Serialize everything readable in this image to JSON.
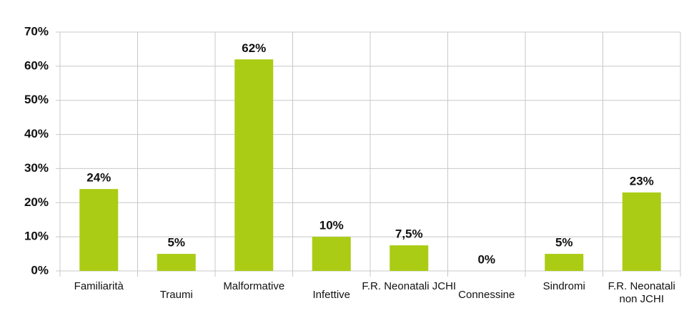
{
  "chart_data": {
    "type": "bar",
    "categories": [
      "Familiarità",
      "Traumi",
      "Malformative",
      "Infettive",
      "F.R. Neonatali JCHI",
      "Connessine",
      "Sindromi",
      "F.R. Neonatali\nnon JCHI"
    ],
    "values": [
      24,
      5,
      62,
      10,
      7.5,
      0,
      5,
      23
    ],
    "value_labels": [
      "24%",
      "5%",
      "62%",
      "10%",
      "7,5%",
      "0%",
      "5%",
      "23%"
    ],
    "color": "#aacc14",
    "ylim": [
      0,
      70
    ],
    "yticks": [
      {
        "value": 0,
        "label": "0%"
      },
      {
        "value": 10,
        "label": "10%"
      },
      {
        "value": 20,
        "label": "20%"
      },
      {
        "value": 30,
        "label": "30%"
      },
      {
        "value": 40,
        "label": "40%"
      },
      {
        "value": 50,
        "label": "50%"
      },
      {
        "value": 60,
        "label": "60%"
      },
      {
        "value": 70,
        "label": "70%"
      }
    ],
    "grid": true
  }
}
